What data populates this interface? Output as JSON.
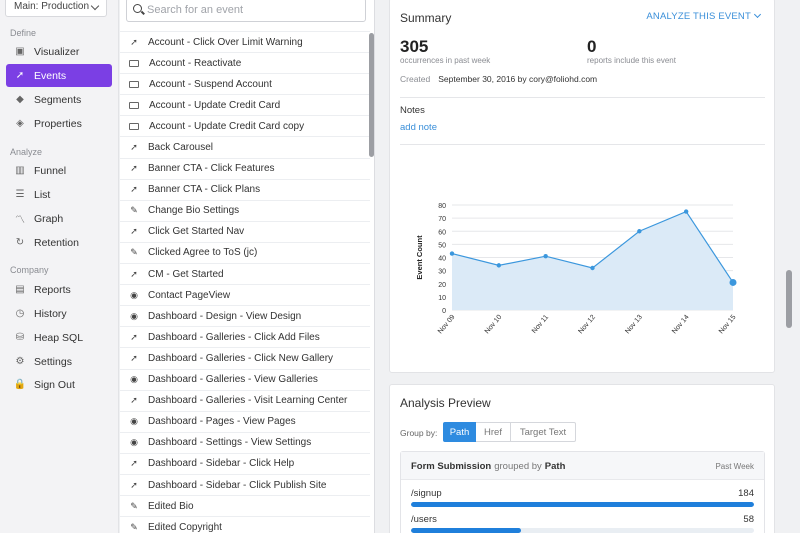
{
  "sidebar": {
    "env_label": "Main: Production",
    "sections": {
      "define": "Define",
      "analyze": "Analyze",
      "company": "Company"
    },
    "items": [
      {
        "label": "Visualizer",
        "icon": "visualizer-icon",
        "glyph": "▣"
      },
      {
        "label": "Events",
        "icon": "cursor-icon",
        "glyph": "➚",
        "active": true
      },
      {
        "label": "Segments",
        "icon": "segments-icon",
        "glyph": "◆"
      },
      {
        "label": "Properties",
        "icon": "properties-icon",
        "glyph": "◈"
      },
      {
        "label": "Funnel",
        "icon": "funnel-icon",
        "glyph": "▥"
      },
      {
        "label": "List",
        "icon": "list-icon",
        "glyph": "☰"
      },
      {
        "label": "Graph",
        "icon": "graph-icon",
        "glyph": "〽"
      },
      {
        "label": "Retention",
        "icon": "retention-icon",
        "glyph": "↻"
      },
      {
        "label": "Reports",
        "icon": "reports-icon",
        "glyph": "▤"
      },
      {
        "label": "History",
        "icon": "history-icon",
        "glyph": "◷"
      },
      {
        "label": "Heap SQL",
        "icon": "database-icon",
        "glyph": "⛁"
      },
      {
        "label": "Settings",
        "icon": "gear-icon",
        "glyph": "⚙"
      },
      {
        "label": "Sign Out",
        "icon": "lock-icon",
        "glyph": "🔒"
      }
    ]
  },
  "search": {
    "placeholder": "Search for an event",
    "value": ""
  },
  "events": [
    {
      "label": "Account - Click Over Limit Warning",
      "type": "click"
    },
    {
      "label": "Account - Reactivate",
      "type": "form"
    },
    {
      "label": "Account - Suspend Account",
      "type": "form"
    },
    {
      "label": "Account - Update Credit Card",
      "type": "form"
    },
    {
      "label": "Account - Update Credit Card copy",
      "type": "form"
    },
    {
      "label": "Back Carousel",
      "type": "click"
    },
    {
      "label": "Banner CTA - Click Features",
      "type": "click"
    },
    {
      "label": "Banner CTA - Click Plans",
      "type": "click"
    },
    {
      "label": "Change Bio Settings",
      "type": "change"
    },
    {
      "label": "Click Get Started Nav",
      "type": "click"
    },
    {
      "label": "Clicked Agree to ToS (jc)",
      "type": "change"
    },
    {
      "label": "CM - Get Started",
      "type": "click"
    },
    {
      "label": "Contact PageView",
      "type": "view"
    },
    {
      "label": "Dashboard - Design - View Design",
      "type": "view"
    },
    {
      "label": "Dashboard - Galleries - Click Add Files",
      "type": "click"
    },
    {
      "label": "Dashboard - Galleries - Click New Gallery",
      "type": "click"
    },
    {
      "label": "Dashboard - Galleries - View Galleries",
      "type": "view"
    },
    {
      "label": "Dashboard - Galleries - Visit Learning Center",
      "type": "click"
    },
    {
      "label": "Dashboard - Pages - View Pages",
      "type": "view"
    },
    {
      "label": "Dashboard - Settings - View Settings",
      "type": "view"
    },
    {
      "label": "Dashboard - Sidebar - Click Help",
      "type": "click"
    },
    {
      "label": "Dashboard - Sidebar - Click Publish Site",
      "type": "click"
    },
    {
      "label": "Edited Bio",
      "type": "change"
    },
    {
      "label": "Edited Copyright",
      "type": "change"
    }
  ],
  "summary": {
    "title": "Summary",
    "analyze_label": "ANALYZE THIS EVENT",
    "occurrences": "305",
    "occurrences_caption": "occurrences in past week",
    "reports": "0",
    "reports_caption": "reports include this event",
    "created_label": "Created",
    "created_value": "September 30, 2016 by cory@foliohd.com",
    "notes_label": "Notes",
    "add_note": "add note"
  },
  "chart_data": {
    "type": "line",
    "x": [
      "Nov 09",
      "Nov 10",
      "Nov 11",
      "Nov 12",
      "Nov 13",
      "Nov 14",
      "Nov 15"
    ],
    "values": [
      43,
      34,
      41,
      32,
      60,
      75,
      21
    ],
    "ylabel": "Event Count",
    "ylim": [
      0,
      80
    ],
    "yticks": [
      0,
      10,
      20,
      30,
      40,
      50,
      60,
      70,
      80
    ],
    "line_color": "#3b97dd",
    "fill_color": "#dbeaf7"
  },
  "preview": {
    "title": "Analysis Preview",
    "group_by_label": "Group by:",
    "options": [
      "Path",
      "Href",
      "Target Text"
    ],
    "selected": "Path",
    "table_title_a": "Form Submission",
    "table_title_mid": "grouped by",
    "table_title_b": "Path",
    "period": "Past Week",
    "rows": [
      {
        "label": "/signup",
        "value": 184,
        "fraction": 1.0
      },
      {
        "label": "/users",
        "value": 58,
        "fraction": 0.32
      }
    ]
  }
}
